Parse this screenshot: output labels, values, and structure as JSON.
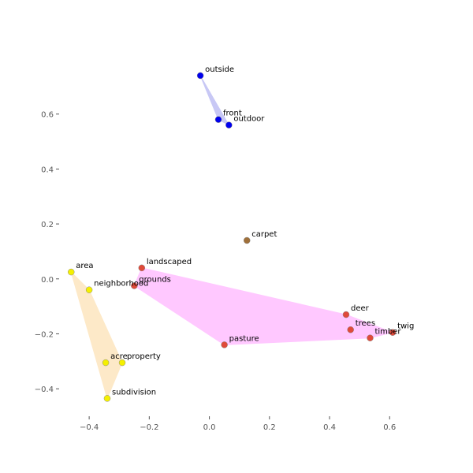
{
  "chart_data": {
    "type": "scatter",
    "title": "",
    "xlabel": "",
    "ylabel": "",
    "xlim": [
      -0.5,
      0.72
    ],
    "ylim": [
      -0.5,
      0.8
    ],
    "grid": false,
    "x_ticks": [
      -0.4,
      -0.2,
      0.0,
      0.2,
      0.4,
      0.6
    ],
    "x_tick_labels": [
      "−0.4",
      "−0.2",
      "0.0",
      "0.2",
      "0.4",
      "0.6"
    ],
    "y_ticks": [
      -0.4,
      -0.2,
      0.0,
      0.2,
      0.4,
      0.6
    ],
    "y_tick_labels": [
      "−0.4",
      "−0.2",
      "0.0",
      "0.2",
      "0.4",
      "0.6"
    ],
    "clusters": [
      {
        "color": "#0000ee",
        "hull_color": "#c8c8f5",
        "points": [
          {
            "label": "outside",
            "x": -0.03,
            "y": 0.74
          },
          {
            "label": "front",
            "x": 0.03,
            "y": 0.58
          },
          {
            "label": "outdoor",
            "x": 0.065,
            "y": 0.56
          }
        ]
      },
      {
        "color": "#a0703a",
        "hull_color": null,
        "points": [
          {
            "label": "carpet",
            "x": 0.125,
            "y": 0.14
          }
        ]
      },
      {
        "color": "#e04a3a",
        "hull_color": "#ffc8ff",
        "points": [
          {
            "label": "landscaped",
            "x": -0.225,
            "y": 0.04
          },
          {
            "label": "grounds",
            "x": -0.25,
            "y": -0.025
          },
          {
            "label": "deer",
            "x": 0.455,
            "y": -0.13
          },
          {
            "label": "trees",
            "x": 0.47,
            "y": -0.185
          },
          {
            "label": "timber",
            "x": 0.535,
            "y": -0.215
          },
          {
            "label": "twig",
            "x": 0.61,
            "y": -0.195
          },
          {
            "label": "pasture",
            "x": 0.05,
            "y": -0.24
          }
        ]
      },
      {
        "color": "#f5f000",
        "hull_color": "#fde9c8",
        "points": [
          {
            "label": "area",
            "x": -0.46,
            "y": 0.025
          },
          {
            "label": "neighborhood",
            "x": -0.4,
            "y": -0.04
          },
          {
            "label": "acre",
            "x": -0.345,
            "y": -0.305
          },
          {
            "label": "property",
            "x": -0.29,
            "y": -0.305
          },
          {
            "label": "subdivision",
            "x": -0.34,
            "y": -0.435
          }
        ]
      }
    ]
  }
}
